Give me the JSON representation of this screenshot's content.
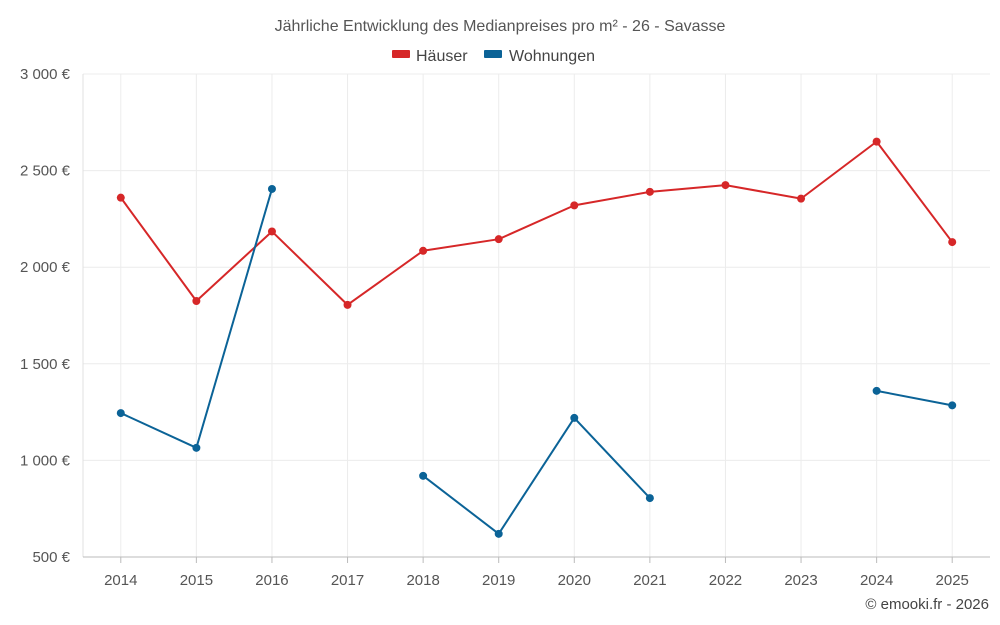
{
  "chart_data": {
    "type": "line",
    "title": "Jährliche Entwicklung des Medianpreises pro m² - 26 - Savasse",
    "categories": [
      "2014",
      "2015",
      "2016",
      "2017",
      "2018",
      "2019",
      "2020",
      "2021",
      "2022",
      "2023",
      "2024",
      "2025"
    ],
    "y_tick_values": [
      500,
      1000,
      1500,
      2000,
      2500,
      3000
    ],
    "y_tick_labels": [
      "500 €",
      "1 000 €",
      "1 500 €",
      "2 000 €",
      "2 500 €",
      "3 000 €"
    ],
    "ylim": [
      500,
      3000
    ],
    "grid": true,
    "legend_position": "top-center",
    "series": [
      {
        "name": "Häuser",
        "color": "#d62728",
        "values": [
          2360,
          1825,
          2185,
          1805,
          2085,
          2145,
          2320,
          2390,
          2425,
          2355,
          2650,
          2130
        ]
      },
      {
        "name": "Wohnungen",
        "color": "#0b6397",
        "values": [
          1245,
          1065,
          2405,
          null,
          920,
          620,
          1220,
          805,
          null,
          null,
          1360,
          1285
        ]
      }
    ],
    "credit": "© emooki.fr - 2026"
  }
}
